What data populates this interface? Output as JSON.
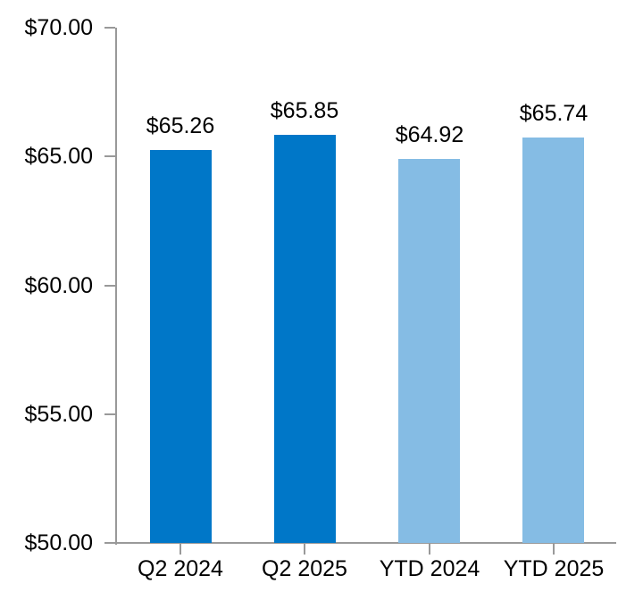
{
  "chart_data": {
    "type": "bar",
    "title": "",
    "xlabel": "",
    "ylabel": "",
    "categories": [
      "Q2 2024",
      "Q2 2025",
      "YTD 2024",
      "YTD 2025"
    ],
    "values": [
      65.26,
      65.85,
      64.92,
      65.74
    ],
    "value_labels": [
      "$65.26",
      "$65.85",
      "$64.92",
      "$65.74"
    ],
    "bar_colors": [
      "#0077C8",
      "#0077C8",
      "#85BCE4",
      "#85BCE4"
    ],
    "ylim": [
      50,
      70
    ],
    "y_ticks": [
      {
        "value": 70,
        "label": "$70.00"
      },
      {
        "value": 65,
        "label": "$65.00"
      },
      {
        "value": 60,
        "label": "$60.00"
      },
      {
        "value": 55,
        "label": "$55.00"
      },
      {
        "value": 50,
        "label": "$50.00"
      }
    ],
    "grid": false,
    "legend": null,
    "axis_color": "#999999",
    "text_color": "#000000",
    "background_color": "#FFFFFF"
  }
}
